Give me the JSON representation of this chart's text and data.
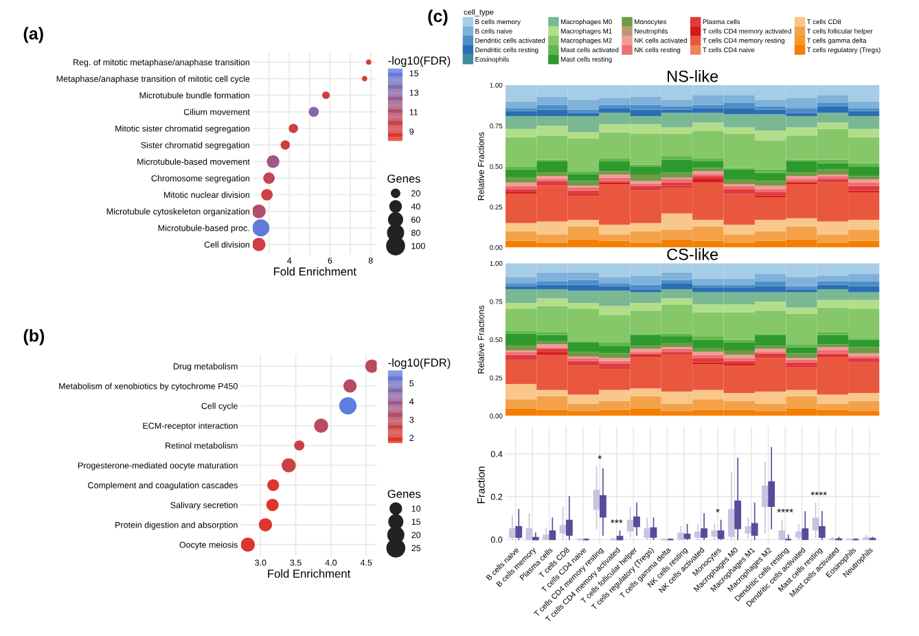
{
  "chart_data": [
    {
      "type": "bubble",
      "orientation": "horizontal",
      "title": "(a)",
      "xlabel": "Fold Enrichment",
      "clabel": "-log10(FDR)",
      "legend_title": "Genes",
      "grid": true,
      "categories": [
        "Reg. of mitotic metaphase/anaphase transition",
        "Metaphase/anaphase transition of mitotic cell cycle",
        "Microtubule bundle formation",
        "Cilium movement",
        "Mitotic sister chromatid segregation",
        "Sister chromatid segregation",
        "Microtubule-based movement",
        "Chromosome segregation",
        "Mitotic nuclear division",
        "Microtubule cytoskeleton organization",
        "Microtubule-based proc.",
        "Cell division"
      ],
      "values": [
        7.9,
        7.7,
        5.8,
        5.2,
        4.2,
        3.8,
        3.2,
        3.0,
        2.9,
        2.5,
        2.6,
        2.5
      ],
      "sizes": [
        10,
        10,
        20,
        35,
        30,
        30,
        55,
        45,
        45,
        65,
        100,
        60
      ],
      "cvalues": [
        9,
        9,
        9.5,
        13,
        9.5,
        9.5,
        12,
        10,
        9.5,
        11,
        15,
        9.5
      ],
      "clim": [
        8,
        15.5
      ],
      "cticks": [
        9,
        11,
        13,
        15
      ],
      "size_legend": [
        20,
        40,
        60,
        80,
        100
      ],
      "xlim": [
        2.2,
        8.3
      ],
      "xticks": [
        {
          "value": 3,
          "label": null
        },
        4,
        {
          "value": 5,
          "label": null
        },
        6,
        {
          "value": 7,
          "label": null
        },
        8
      ]
    },
    {
      "type": "bubble",
      "orientation": "horizontal",
      "title": "(b)",
      "xlabel": "Fold Enrichment",
      "clabel": "-log10(FDR)",
      "legend_title": "Genes",
      "grid": true,
      "categories": [
        "Drug metabolism",
        "Metabolism of xenobiotics by cytochrome P450",
        "Cell cycle",
        "ECM-receptor interaction",
        "Retinol metabolism",
        "Progesterone-mediated oocyte maturation",
        "Complement and coagulation cascades",
        "Salivary secretion",
        "Protein digestion and absorption",
        "Oocyte meiosis"
      ],
      "values": [
        4.58,
        4.27,
        4.24,
        3.86,
        3.55,
        3.4,
        3.18,
        3.17,
        3.07,
        2.82
      ],
      "sizes": [
        15,
        15,
        26,
        17,
        9,
        17,
        12,
        13,
        15,
        17
      ],
      "cvalues": [
        3,
        3,
        5.6,
        3,
        2.5,
        2.5,
        2,
        2,
        2,
        2
      ],
      "clim": [
        1.7,
        5.7
      ],
      "cticks": [
        2,
        3,
        4,
        5
      ],
      "size_legend": [
        10,
        15,
        20,
        25
      ],
      "xlim": [
        2.72,
        4.65
      ],
      "xticks": [
        {
          "value": 3,
          "label": "3.0"
        },
        {
          "value": 3.5,
          "label": "3.5"
        },
        {
          "value": 4,
          "label": "4.0"
        },
        {
          "value": 4.5,
          "label": "4.5"
        }
      ]
    },
    {
      "type": "bar",
      "stacked": true,
      "title": "NS-like",
      "ylabel": "Relative Fractions",
      "legend_title": "cell_type",
      "legend": "top",
      "annotations": [
        "(c)"
      ],
      "categories": [
        null,
        null,
        null,
        null,
        null,
        null,
        null,
        null,
        null,
        null,
        null,
        null
      ],
      "ylim": [
        0,
        1
      ],
      "yticks": [
        {
          "value": 0,
          "label": "0.00"
        },
        {
          "value": 0.25,
          "label": "0.25"
        },
        {
          "value": 0.5,
          "label": "0.50"
        },
        {
          "value": 0.75,
          "label": "0.75"
        },
        {
          "value": 1,
          "label": "1.00"
        }
      ],
      "series": [
        {
          "name": "T cells regulatory (Tregs)",
          "color": "#f47f00",
          "values": [
            0.04,
            0.03,
            0.05,
            0.04,
            0.03,
            0.05,
            0.04,
            0.03,
            0.04,
            0.05,
            0.03,
            0.04
          ]
        },
        {
          "name": "T cells gamma delta",
          "color": "#f59a2a",
          "values": [
            0,
            0,
            0,
            0,
            0,
            0,
            0,
            0,
            0,
            0,
            0,
            0
          ]
        },
        {
          "name": "T cells follicular helper",
          "color": "#f4a24a",
          "values": [
            0.06,
            0.05,
            0.08,
            0.04,
            0.07,
            0.06,
            0.09,
            0.05,
            0.06,
            0.08,
            0.05,
            0.07
          ]
        },
        {
          "name": "T cells CD8",
          "color": "#f9c78a",
          "values": [
            0.05,
            0.08,
            0.04,
            0.06,
            0.05,
            0.1,
            0.04,
            0.06,
            0.07,
            0.05,
            0.08,
            0.06
          ]
        },
        {
          "name": "T cells CD4 naive",
          "color": "#f0855a",
          "values": [
            0,
            0,
            0,
            0,
            0,
            0,
            0,
            0,
            0,
            0,
            0,
            0
          ]
        },
        {
          "name": "T cells CD4 memory resting",
          "color": "#e9573f",
          "values": [
            0.18,
            0.22,
            0.15,
            0.25,
            0.2,
            0.16,
            0.23,
            0.19,
            0.14,
            0.21,
            0.24,
            0.17
          ]
        },
        {
          "name": "T cells CD4 memory activated",
          "color": "#d7191c",
          "values": [
            0.01,
            0,
            0.01,
            0.01,
            0,
            0.01,
            0.02,
            0,
            0.01,
            0.01,
            0,
            0.01
          ]
        },
        {
          "name": "Plasma cells",
          "color": "#e03a3e",
          "values": [
            0.02,
            0.03,
            0.02,
            0.01,
            0.03,
            0.02,
            0.02,
            0.03,
            0.02,
            0.01,
            0.02,
            0.03
          ]
        },
        {
          "name": "NK cells resting",
          "color": "#ec6f73",
          "values": [
            0.02,
            0.01,
            0.02,
            0.02,
            0.01,
            0.02,
            0.01,
            0.02,
            0.02,
            0.01,
            0.02,
            0.02
          ]
        },
        {
          "name": "NK cells activated",
          "color": "#f49a9a",
          "values": [
            0.02,
            0.02,
            0.01,
            0.02,
            0.02,
            0.01,
            0.02,
            0.01,
            0.02,
            0.02,
            0.01,
            0.02
          ]
        },
        {
          "name": "Neutrophils",
          "color": "#b89a70",
          "values": [
            0,
            0,
            0,
            0,
            0,
            0,
            0,
            0,
            0,
            0,
            0,
            0
          ]
        },
        {
          "name": "Monocytes",
          "color": "#6f9a45",
          "values": [
            0.03,
            0.02,
            0.03,
            0.02,
            0.04,
            0.03,
            0.02,
            0.03,
            0.03,
            0.02,
            0.03,
            0.02
          ]
        },
        {
          "name": "Mast cells resting",
          "color": "#2e9a2e",
          "values": [
            0.05,
            0.07,
            0.04,
            0.06,
            0.05,
            0.08,
            0.04,
            0.06,
            0.05,
            0.07,
            0.04,
            0.06
          ]
        },
        {
          "name": "Mast cells activated",
          "color": "#5fb84a",
          "values": [
            0.02,
            0.01,
            0.02,
            0.02,
            0.01,
            0.02,
            0.02,
            0.01,
            0.02,
            0.01,
            0.02,
            0.02
          ]
        },
        {
          "name": "Macrophages M2",
          "color": "#86c76a",
          "values": [
            0.18,
            0.15,
            0.2,
            0.16,
            0.19,
            0.14,
            0.17,
            0.21,
            0.18,
            0.15,
            0.19,
            0.16
          ]
        },
        {
          "name": "Macrophages M1",
          "color": "#b2de8a",
          "values": [
            0.05,
            0.06,
            0.04,
            0.05,
            0.06,
            0.04,
            0.05,
            0.04,
            0.06,
            0.05,
            0.04,
            0.05
          ]
        },
        {
          "name": "Macrophages M0",
          "color": "#79b892",
          "values": [
            0.08,
            0.06,
            0.1,
            0.07,
            0.05,
            0.09,
            0.06,
            0.08,
            0.1,
            0.07,
            0.06,
            0.08
          ]
        },
        {
          "name": "Eosinophils",
          "color": "#3f8c9c",
          "values": [
            0,
            0,
            0,
            0,
            0,
            0,
            0,
            0,
            0,
            0,
            0,
            0
          ]
        },
        {
          "name": "Dendritic cells resting",
          "color": "#2a6fb5",
          "values": [
            0.03,
            0.04,
            0.02,
            0.03,
            0.04,
            0.02,
            0.03,
            0.04,
            0.03,
            0.02,
            0.04,
            0.03
          ]
        },
        {
          "name": "Dendritic cells activated",
          "color": "#4f8fc7",
          "values": [
            0.02,
            0.03,
            0.02,
            0.02,
            0.03,
            0.02,
            0.02,
            0.03,
            0.02,
            0.03,
            0.02,
            0.02
          ]
        },
        {
          "name": "B cells naive",
          "color": "#7fb2d9",
          "values": [
            0.04,
            0.05,
            0.06,
            0.04,
            0.05,
            0.04,
            0.06,
            0.05,
            0.04,
            0.06,
            0.05,
            0.04
          ]
        },
        {
          "name": "B cells memory",
          "color": "#a6cde6",
          "values": [
            0.1,
            0.07,
            0.09,
            0.08,
            0.07,
            0.09,
            0.06,
            0.06,
            0.09,
            0.08,
            0.06,
            0.1
          ]
        }
      ]
    },
    {
      "type": "bar",
      "stacked": true,
      "title": "CS-like",
      "ylabel": "Relative Fractions",
      "categories": [
        null,
        null,
        null,
        null,
        null,
        null,
        null,
        null,
        null,
        null,
        null,
        null
      ],
      "ylim": [
        0,
        1
      ],
      "yticks": [
        {
          "value": 0,
          "label": "0.00"
        },
        {
          "value": 0.25,
          "label": "0.25"
        },
        {
          "value": 0.5,
          "label": "0.50"
        },
        {
          "value": 0.75,
          "label": "0.75"
        },
        {
          "value": 1,
          "label": "1.00"
        }
      ],
      "series": [
        {
          "color": "#f47f00",
          "values": [
            0.05,
            0.04,
            0.03,
            0.04,
            0.05,
            0.03,
            0.04,
            0.04,
            0.03,
            0.05,
            0.04,
            0.03
          ]
        },
        {
          "color": "#f59a2a",
          "values": [
            0,
            0,
            0,
            0,
            0,
            0,
            0,
            0,
            0,
            0,
            0,
            0
          ]
        },
        {
          "color": "#f4a24a",
          "values": [
            0.06,
            0.09,
            0.05,
            0.06,
            0.08,
            0.05,
            0.07,
            0.06,
            0.05,
            0.08,
            0.04,
            0.07
          ]
        },
        {
          "color": "#f9c78a",
          "values": [
            0.1,
            0.04,
            0.06,
            0.07,
            0.05,
            0.08,
            0.06,
            0.05,
            0.08,
            0.04,
            0.06,
            0.05
          ]
        },
        {
          "color": "#f0855a",
          "values": [
            0,
            0,
            0,
            0,
            0,
            0,
            0,
            0,
            0,
            0,
            0,
            0
          ]
        },
        {
          "color": "#e9573f",
          "values": [
            0.16,
            0.23,
            0.19,
            0.14,
            0.21,
            0.24,
            0.17,
            0.18,
            0.22,
            0.15,
            0.25,
            0.2
          ]
        },
        {
          "color": "#d7191c",
          "values": [
            0.01,
            0.02,
            0,
            0.01,
            0.01,
            0,
            0.01,
            0.01,
            0,
            0.01,
            0.01,
            0
          ]
        },
        {
          "color": "#e03a3e",
          "values": [
            0.02,
            0.02,
            0.03,
            0.02,
            0.01,
            0.02,
            0.03,
            0.02,
            0.03,
            0.02,
            0.01,
            0.03
          ]
        },
        {
          "color": "#ec6f73",
          "values": [
            0.02,
            0.01,
            0.02,
            0.02,
            0.01,
            0.02,
            0.02,
            0.02,
            0.01,
            0.02,
            0.02,
            0.01
          ]
        },
        {
          "color": "#f49a9a",
          "values": [
            0.01,
            0.02,
            0.01,
            0.02,
            0.02,
            0.01,
            0.02,
            0.02,
            0.02,
            0.01,
            0.02,
            0.02
          ]
        },
        {
          "color": "#b89a70",
          "values": [
            0,
            0,
            0,
            0,
            0,
            0,
            0,
            0,
            0,
            0,
            0,
            0
          ]
        },
        {
          "color": "#6f9a45",
          "values": [
            0.03,
            0.02,
            0.03,
            0.03,
            0.02,
            0.03,
            0.02,
            0.03,
            0.02,
            0.03,
            0.02,
            0.04
          ]
        },
        {
          "color": "#2e9a2e",
          "values": [
            0.08,
            0.04,
            0.06,
            0.05,
            0.07,
            0.04,
            0.06,
            0.05,
            0.07,
            0.04,
            0.06,
            0.05
          ]
        },
        {
          "color": "#5fb84a",
          "values": [
            0.02,
            0.02,
            0.01,
            0.02,
            0.01,
            0.02,
            0.02,
            0.02,
            0.01,
            0.02,
            0.02,
            0.01
          ]
        },
        {
          "color": "#86c76a",
          "values": [
            0.14,
            0.17,
            0.21,
            0.18,
            0.15,
            0.19,
            0.16,
            0.18,
            0.15,
            0.2,
            0.16,
            0.19
          ]
        },
        {
          "color": "#b2de8a",
          "values": [
            0.04,
            0.05,
            0.04,
            0.06,
            0.05,
            0.04,
            0.05,
            0.05,
            0.06,
            0.04,
            0.05,
            0.06
          ]
        },
        {
          "color": "#79b892",
          "values": [
            0.09,
            0.06,
            0.08,
            0.1,
            0.07,
            0.06,
            0.08,
            0.08,
            0.06,
            0.1,
            0.07,
            0.05
          ]
        },
        {
          "color": "#3f8c9c",
          "values": [
            0,
            0,
            0,
            0,
            0,
            0,
            0,
            0,
            0,
            0,
            0,
            0
          ]
        },
        {
          "color": "#2a6fb5",
          "values": [
            0.02,
            0.03,
            0.04,
            0.03,
            0.02,
            0.04,
            0.03,
            0.03,
            0.04,
            0.02,
            0.03,
            0.04
          ]
        },
        {
          "color": "#4f8fc7",
          "values": [
            0.02,
            0.02,
            0.03,
            0.02,
            0.03,
            0.02,
            0.02,
            0.02,
            0.03,
            0.02,
            0.02,
            0.03
          ]
        },
        {
          "color": "#7fb2d9",
          "values": [
            0.04,
            0.06,
            0.05,
            0.04,
            0.06,
            0.05,
            0.04,
            0.04,
            0.05,
            0.06,
            0.04,
            0.05
          ]
        },
        {
          "color": "#a6cde6",
          "values": [
            0.09,
            0.06,
            0.06,
            0.09,
            0.08,
            0.06,
            0.1,
            0.1,
            0.07,
            0.09,
            0.08,
            0.07
          ]
        }
      ]
    },
    {
      "type": "box",
      "ylabel": "Fraction",
      "grid": true,
      "categories": [
        "B cells naive",
        "B cells memory",
        "Plasma cells",
        "T cells CD8",
        "T cells CD4 naive",
        "T cells CD4 memory resting",
        "T cells CD4 memory activated",
        "T cells follicular helper",
        "T cells regulatory (Tregs)",
        "T cells gamma delta",
        "NK cells resting",
        "NK cells activated",
        "Monocytes",
        "Macrophages M0",
        "Macrophages M1",
        "Macrophages M2",
        "Dendritic cells resting",
        "Dendritic cells activated",
        "Mast cells resting",
        "Mast cells activated",
        "Eosinophils",
        "Neutrophils"
      ],
      "ylim": [
        -0.02,
        0.53
      ],
      "yticks": [
        {
          "value": 0,
          "label": "0.0"
        },
        {
          "value": 0.2,
          "label": "0.2"
        },
        {
          "value": 0.4,
          "label": "0.4"
        }
      ],
      "annotations": [
        "*",
        "***",
        "*",
        "****",
        "****"
      ],
      "series": [
        {
          "color": "#c9c3e0",
          "boxes": [
            {
              "low": 0,
              "q1": 0.01,
              "median": 0.025,
              "q3": 0.05,
              "high": 0.11
            },
            {
              "low": 0,
              "q1": 0,
              "median": 0.005,
              "q3": 0.05,
              "high": 0.12
            },
            {
              "low": 0,
              "q1": 0,
              "median": 0.01,
              "q3": 0.02,
              "high": 0.05
            },
            {
              "low": 0,
              "q1": 0.03,
              "median": 0.045,
              "q3": 0.065,
              "high": 0.15
            },
            {
              "low": 0,
              "q1": 0,
              "median": 0,
              "q3": 0,
              "high": 0.003
            },
            {
              "low": 0.05,
              "q1": 0.14,
              "median": 0.175,
              "q3": 0.23,
              "high": 0.34
            },
            {
              "low": 0,
              "q1": 0,
              "median": 0,
              "q3": 0.002,
              "high": 0.005
            },
            {
              "low": 0.01,
              "q1": 0.04,
              "median": 0.06,
              "q3": 0.09,
              "high": 0.15
            },
            {
              "low": 0,
              "q1": 0.01,
              "median": 0.035,
              "q3": 0.05,
              "high": 0.1
            },
            {
              "low": 0,
              "q1": 0,
              "median": 0,
              "q3": 0,
              "high": 0.002
            },
            {
              "low": 0,
              "q1": 0,
              "median": 0.01,
              "q3": 0.03,
              "high": 0.06
            },
            {
              "low": 0,
              "q1": 0.01,
              "median": 0.015,
              "q3": 0.035,
              "high": 0.07
            },
            {
              "low": 0,
              "q1": 0.015,
              "median": 0.03,
              "q3": 0.04,
              "high": 0.07
            },
            {
              "low": 0,
              "q1": 0.015,
              "median": 0.07,
              "q3": 0.14,
              "high": 0.31
            },
            {
              "low": 0.01,
              "q1": 0.03,
              "median": 0.05,
              "q3": 0.06,
              "high": 0.1
            },
            {
              "low": 0.03,
              "q1": 0.155,
              "median": 0.2,
              "q3": 0.25,
              "high": 0.36
            },
            {
              "low": 0,
              "q1": 0,
              "median": 0.005,
              "q3": 0.04,
              "high": 0.09
            },
            {
              "low": 0,
              "q1": 0.01,
              "median": 0.02,
              "q3": 0.035,
              "high": 0.07
            },
            {
              "low": 0.01,
              "q1": 0.045,
              "median": 0.06,
              "q3": 0.1,
              "high": 0.17
            },
            {
              "low": 0,
              "q1": 0,
              "median": 0,
              "q3": 0.003,
              "high": 0.01
            },
            {
              "low": 0,
              "q1": 0,
              "median": 0,
              "q3": 0,
              "high": 0.002
            },
            {
              "low": 0,
              "q1": 0,
              "median": 0.003,
              "q3": 0.008,
              "high": 0.02
            }
          ]
        },
        {
          "color": "#5b4a9a",
          "boxes": [
            {
              "low": 0,
              "q1": 0.01,
              "median": 0.03,
              "q3": 0.06,
              "high": 0.14
            },
            {
              "low": 0,
              "q1": 0,
              "median": 0,
              "q3": 0.01,
              "high": 0.03
            },
            {
              "low": 0,
              "q1": 0,
              "median": 0.015,
              "q3": 0.04,
              "high": 0.1
            },
            {
              "low": 0,
              "q1": 0.02,
              "median": 0.05,
              "q3": 0.09,
              "high": 0.2
            },
            {
              "low": 0,
              "q1": 0,
              "median": 0,
              "q3": 0,
              "high": 0.003
            },
            {
              "low": 0.02,
              "q1": 0.105,
              "median": 0.165,
              "q3": 0.205,
              "high": 0.33
            },
            {
              "low": 0,
              "q1": 0,
              "median": 0,
              "q3": 0.015,
              "high": 0.04
            },
            {
              "low": 0.02,
              "q1": 0.06,
              "median": 0.08,
              "q3": 0.105,
              "high": 0.17
            },
            {
              "low": 0,
              "q1": 0.01,
              "median": 0.035,
              "q3": 0.055,
              "high": 0.1
            },
            {
              "low": 0,
              "q1": 0,
              "median": 0,
              "q3": 0,
              "high": 0.002
            },
            {
              "low": 0,
              "q1": 0.005,
              "median": 0.01,
              "q3": 0.025,
              "high": 0.07
            },
            {
              "low": 0,
              "q1": 0.01,
              "median": 0.03,
              "q3": 0.05,
              "high": 0.12
            },
            {
              "low": 0,
              "q1": 0.005,
              "median": 0.02,
              "q3": 0.04,
              "high": 0.09
            },
            {
              "low": 0,
              "q1": 0.05,
              "median": 0.105,
              "q3": 0.18,
              "high": 0.38
            },
            {
              "low": 0,
              "q1": 0.02,
              "median": 0.045,
              "q3": 0.075,
              "high": 0.17
            },
            {
              "low": 0.05,
              "q1": 0.155,
              "median": 0.21,
              "q3": 0.27,
              "high": 0.43
            },
            {
              "low": 0,
              "q1": 0,
              "median": 0,
              "q3": 0,
              "high": 0.02
            },
            {
              "low": 0,
              "q1": 0,
              "median": 0.02,
              "q3": 0.05,
              "high": 0.13
            },
            {
              "low": 0,
              "q1": 0.01,
              "median": 0.025,
              "q3": 0.06,
              "high": 0.13
            },
            {
              "low": 0,
              "q1": 0,
              "median": 0,
              "q3": 0.003,
              "high": 0.01
            },
            {
              "low": 0,
              "q1": 0,
              "median": 0,
              "q3": 0,
              "high": 0.002
            },
            {
              "low": 0,
              "q1": 0,
              "median": 0.002,
              "q3": 0.005,
              "high": 0.01
            }
          ]
        }
      ]
    }
  ]
}
